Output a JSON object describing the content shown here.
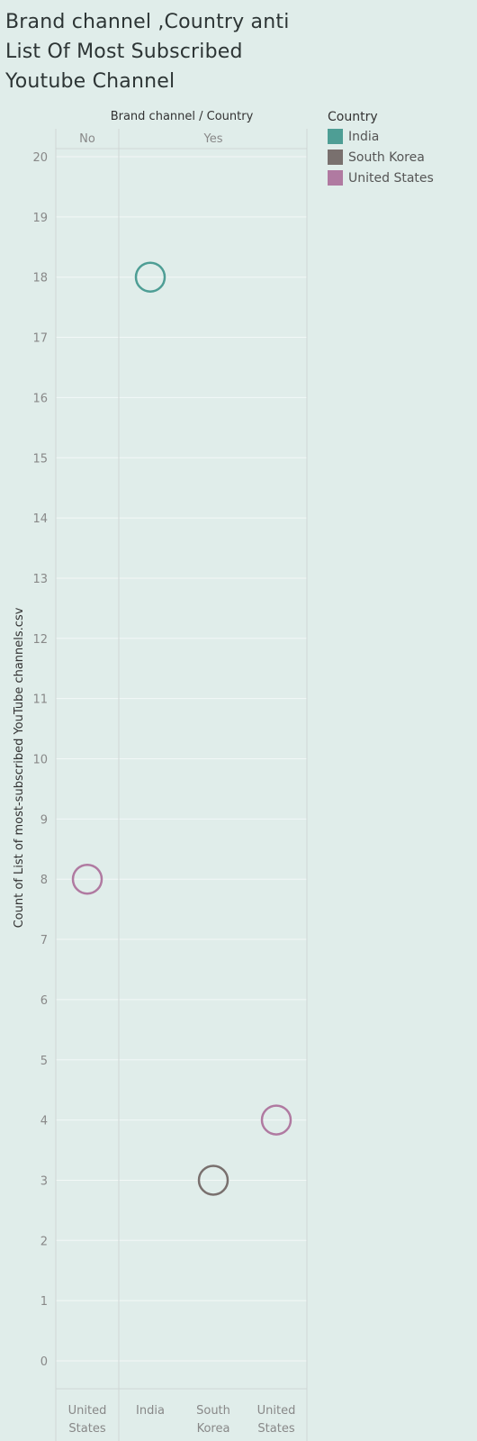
{
  "title": "Brand channel ,Country anti List Of Most Subscribed Youtube Channel",
  "colors": {
    "India": "#4e9e95",
    "South Korea": "#79706e",
    "United States": "#b07aa1"
  },
  "chart_data": {
    "type": "scatter",
    "header_label": "Brand channel  /  Country",
    "ylabel": "Count of List of most-subscribed YouTube channels.csv",
    "ylim": [
      0,
      20
    ],
    "yticks": [
      0,
      1,
      2,
      3,
      4,
      5,
      6,
      7,
      8,
      9,
      10,
      11,
      12,
      13,
      14,
      15,
      16,
      17,
      18,
      19,
      20
    ],
    "groups": [
      {
        "label": "No",
        "categories": [
          {
            "label": "United States",
            "country": "United States",
            "value": 8
          }
        ]
      },
      {
        "label": "Yes",
        "categories": [
          {
            "label": "India",
            "country": "India",
            "value": 18
          },
          {
            "label": "South Korea",
            "country": "South Korea",
            "value": 3
          },
          {
            "label": "United States",
            "country": "United States",
            "value": 4
          }
        ]
      }
    ],
    "legend": {
      "title": "Country",
      "position": "right",
      "items": [
        "India",
        "South Korea",
        "United States"
      ]
    }
  }
}
